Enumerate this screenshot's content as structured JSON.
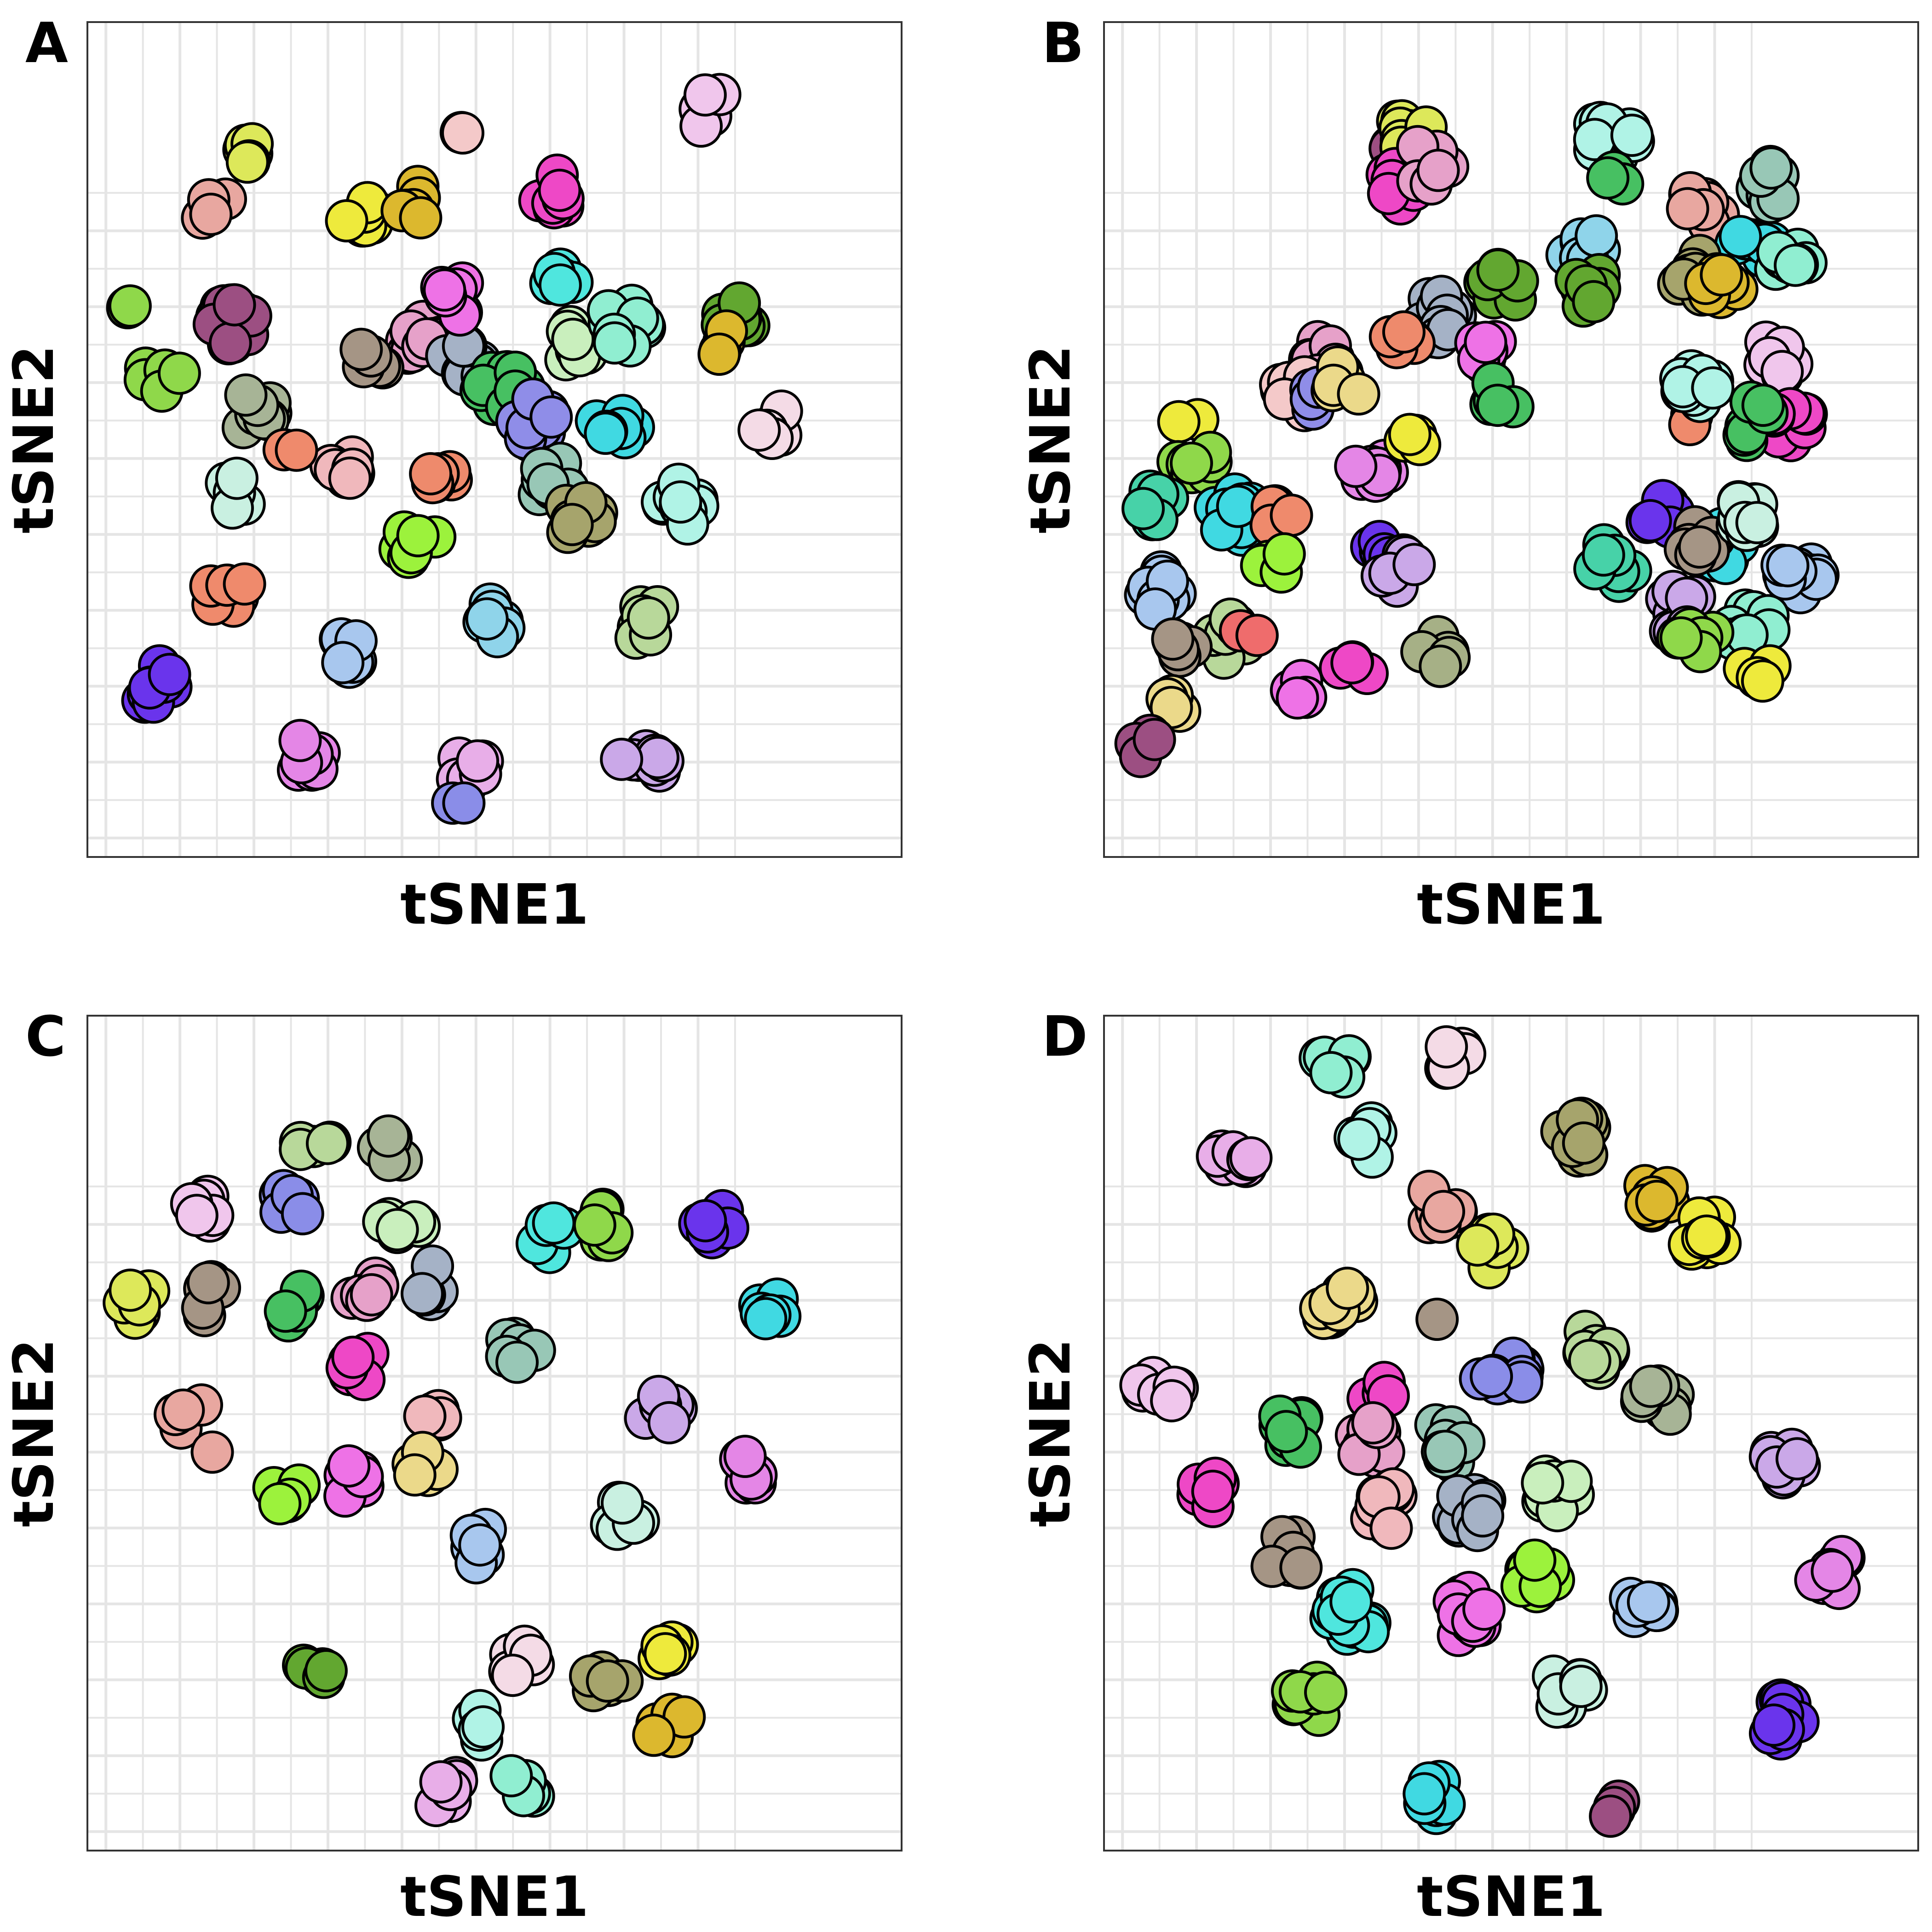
{
  "chart_data": [
    {
      "type": "scatter",
      "panel": "A",
      "xlabel": "tSNE1",
      "ylabel": "tSNE2",
      "grid": true,
      "legend": "none",
      "xlim": [
        0.0,
        8.8
      ],
      "ylim": [
        0.0,
        8.8
      ],
      "clusters": [
        {
          "color": "#dde85a",
          "x": 1.7,
          "y": 7.4,
          "n": 6
        },
        {
          "color": "#e8a7a0",
          "x": 1.4,
          "y": 6.8,
          "n": 5
        },
        {
          "color": "#f4c9c9",
          "x": 4.1,
          "y": 7.6,
          "n": 2
        },
        {
          "color": "#f0c6ec",
          "x": 6.7,
          "y": 7.9,
          "n": 8
        },
        {
          "color": "#ee48c6",
          "x": 5.0,
          "y": 7.0,
          "n": 8
        },
        {
          "color": "#eeea3c",
          "x": 3.0,
          "y": 6.7,
          "n": 8
        },
        {
          "color": "#dcb82e",
          "x": 3.5,
          "y": 6.9,
          "n": 6
        },
        {
          "color": "#8fd84a",
          "x": 0.4,
          "y": 5.8,
          "n": 2
        },
        {
          "color": "#8fd84a",
          "x": 0.8,
          "y": 5.1,
          "n": 6
        },
        {
          "color": "#9c4f82",
          "x": 1.6,
          "y": 5.6,
          "n": 14
        },
        {
          "color": "#a7b496",
          "x": 1.8,
          "y": 4.7,
          "n": 8
        },
        {
          "color": "#e6a1c9",
          "x": 3.6,
          "y": 5.5,
          "n": 12
        },
        {
          "color": "#a5b2c6",
          "x": 4.1,
          "y": 5.2,
          "n": 10
        },
        {
          "color": "#c9efbd",
          "x": 5.3,
          "y": 5.4,
          "n": 8
        },
        {
          "color": "#47c062",
          "x": 4.5,
          "y": 4.9,
          "n": 12
        },
        {
          "color": "#8f8de8",
          "x": 4.8,
          "y": 4.6,
          "n": 10
        },
        {
          "color": "#a59585",
          "x": 3.0,
          "y": 5.2,
          "n": 6
        },
        {
          "color": "#ee72e6",
          "x": 4.0,
          "y": 5.9,
          "n": 8
        },
        {
          "color": "#4fe6de",
          "x": 5.1,
          "y": 6.1,
          "n": 6
        },
        {
          "color": "#90eed1",
          "x": 5.8,
          "y": 5.6,
          "n": 10
        },
        {
          "color": "#62a730",
          "x": 7.0,
          "y": 5.7,
          "n": 8
        },
        {
          "color": "#dcb82e",
          "x": 6.9,
          "y": 5.4,
          "n": 4
        },
        {
          "color": "#f4dbe6",
          "x": 7.4,
          "y": 4.6,
          "n": 6
        },
        {
          "color": "#40d9e2",
          "x": 5.7,
          "y": 4.6,
          "n": 8
        },
        {
          "color": "#f0b8bc",
          "x": 2.8,
          "y": 4.1,
          "n": 8
        },
        {
          "color": "#ef8a6c",
          "x": 2.2,
          "y": 4.3,
          "n": 2
        },
        {
          "color": "#ee8a6c",
          "x": 3.8,
          "y": 4.1,
          "n": 6
        },
        {
          "color": "#98c7b6",
          "x": 5.0,
          "y": 4.0,
          "n": 10
        },
        {
          "color": "#a6a46c",
          "x": 5.3,
          "y": 3.6,
          "n": 8
        },
        {
          "color": "#c9f0e1",
          "x": 1.6,
          "y": 3.8,
          "n": 6
        },
        {
          "color": "#b0f3e6",
          "x": 6.4,
          "y": 3.7,
          "n": 10
        },
        {
          "color": "#9cf23c",
          "x": 3.6,
          "y": 3.3,
          "n": 10
        },
        {
          "color": "#ef8a6c",
          "x": 1.5,
          "y": 2.8,
          "n": 8
        },
        {
          "color": "#8fd4ea",
          "x": 4.4,
          "y": 2.5,
          "n": 8
        },
        {
          "color": "#a8c7ee",
          "x": 2.9,
          "y": 2.2,
          "n": 8
        },
        {
          "color": "#b8d89a",
          "x": 6.0,
          "y": 2.5,
          "n": 8
        },
        {
          "color": "#6a34ec",
          "x": 0.7,
          "y": 1.8,
          "n": 10
        },
        {
          "color": "#e486e6",
          "x": 2.3,
          "y": 1.0,
          "n": 10
        },
        {
          "color": "#e8aee8",
          "x": 4.1,
          "y": 0.9,
          "n": 8
        },
        {
          "color": "#8a8de8",
          "x": 4.0,
          "y": 0.6,
          "n": 2
        },
        {
          "color": "#caa8e8",
          "x": 6.0,
          "y": 1.0,
          "n": 10
        }
      ]
    },
    {
      "type": "scatter",
      "panel": "B",
      "xlabel": "tSNE1",
      "ylabel": "tSNE2",
      "grid": true,
      "legend": "none",
      "xlim": [
        0.0,
        8.8
      ],
      "ylim": [
        0.0,
        8.8
      ],
      "clusters": [
        {
          "color": "#9c4f82",
          "x": 3.3,
          "y": 7.4,
          "n": 10
        },
        {
          "color": "#dde85a",
          "x": 3.3,
          "y": 7.6,
          "n": 8
        },
        {
          "color": "#ee48c6",
          "x": 3.2,
          "y": 7.1,
          "n": 8
        },
        {
          "color": "#e6a1c9",
          "x": 3.5,
          "y": 7.3,
          "n": 8
        },
        {
          "color": "#b0f3e6",
          "x": 5.5,
          "y": 7.6,
          "n": 14
        },
        {
          "color": "#47c062",
          "x": 5.6,
          "y": 7.2,
          "n": 3
        },
        {
          "color": "#e8a7a0",
          "x": 6.5,
          "y": 6.9,
          "n": 10
        },
        {
          "color": "#98c7b6",
          "x": 7.2,
          "y": 7.1,
          "n": 8
        },
        {
          "color": "#40d9e2",
          "x": 7.0,
          "y": 6.5,
          "n": 8
        },
        {
          "color": "#8fd4ea",
          "x": 5.2,
          "y": 6.4,
          "n": 8
        },
        {
          "color": "#a6a46c",
          "x": 6.4,
          "y": 6.1,
          "n": 12
        },
        {
          "color": "#62a730",
          "x": 5.2,
          "y": 6.0,
          "n": 8
        },
        {
          "color": "#dcb82e",
          "x": 6.7,
          "y": 6.0,
          "n": 8
        },
        {
          "color": "#90eed1",
          "x": 7.4,
          "y": 6.3,
          "n": 8
        },
        {
          "color": "#a5b2c6",
          "x": 3.6,
          "y": 5.7,
          "n": 14
        },
        {
          "color": "#ee8a6c",
          "x": 3.2,
          "y": 5.4,
          "n": 6
        },
        {
          "color": "#62a730",
          "x": 4.3,
          "y": 6.0,
          "n": 8
        },
        {
          "color": "#ee72e6",
          "x": 4.2,
          "y": 5.3,
          "n": 8
        },
        {
          "color": "#47c062",
          "x": 4.3,
          "y": 4.9,
          "n": 6
        },
        {
          "color": "#e6a1c9",
          "x": 2.3,
          "y": 5.2,
          "n": 14
        },
        {
          "color": "#f4c9c9",
          "x": 2.1,
          "y": 4.9,
          "n": 8
        },
        {
          "color": "#8f8de8",
          "x": 2.3,
          "y": 4.8,
          "n": 4
        },
        {
          "color": "#ebd98a",
          "x": 2.6,
          "y": 5.0,
          "n": 6
        },
        {
          "color": "#f0c6ec",
          "x": 7.3,
          "y": 5.3,
          "n": 10
        },
        {
          "color": "#ee48c6",
          "x": 7.4,
          "y": 4.6,
          "n": 8
        },
        {
          "color": "#47c062",
          "x": 7.0,
          "y": 4.6,
          "n": 8
        },
        {
          "color": "#ef8a6c",
          "x": 6.3,
          "y": 4.6,
          "n": 2
        },
        {
          "color": "#b0f3e6",
          "x": 6.4,
          "y": 4.9,
          "n": 10
        },
        {
          "color": "#eeea3c",
          "x": 0.9,
          "y": 4.7,
          "n": 2
        },
        {
          "color": "#8fd84a",
          "x": 1.0,
          "y": 4.2,
          "n": 8
        },
        {
          "color": "#e486e6",
          "x": 2.9,
          "y": 4.1,
          "n": 10
        },
        {
          "color": "#eeea3c",
          "x": 3.3,
          "y": 4.4,
          "n": 4
        },
        {
          "color": "#40d9e2",
          "x": 1.4,
          "y": 3.6,
          "n": 10
        },
        {
          "color": "#ef8a6c",
          "x": 1.9,
          "y": 3.6,
          "n": 6
        },
        {
          "color": "#47d2a8",
          "x": 0.6,
          "y": 3.7,
          "n": 6
        },
        {
          "color": "#9cf23c",
          "x": 1.8,
          "y": 3.1,
          "n": 4
        },
        {
          "color": "#6a34ec",
          "x": 3.0,
          "y": 3.2,
          "n": 8
        },
        {
          "color": "#caa8e8",
          "x": 3.2,
          "y": 3.0,
          "n": 6
        },
        {
          "color": "#a8c7ee",
          "x": 0.6,
          "y": 2.8,
          "n": 10
        },
        {
          "color": "#b8d89a",
          "x": 1.4,
          "y": 2.3,
          "n": 10
        },
        {
          "color": "#a59585",
          "x": 0.9,
          "y": 2.2,
          "n": 6
        },
        {
          "color": "#ebd98a",
          "x": 0.8,
          "y": 1.7,
          "n": 4
        },
        {
          "color": "#ef6c6c",
          "x": 1.6,
          "y": 2.3,
          "n": 2
        },
        {
          "color": "#ee72e6",
          "x": 2.1,
          "y": 1.8,
          "n": 6
        },
        {
          "color": "#ee48c6",
          "x": 2.7,
          "y": 2.0,
          "n": 4
        },
        {
          "color": "#9c4f82",
          "x": 0.4,
          "y": 1.2,
          "n": 4
        },
        {
          "color": "#a6b086",
          "x": 3.6,
          "y": 2.2,
          "n": 6
        },
        {
          "color": "#6a34ec",
          "x": 6.0,
          "y": 3.6,
          "n": 6
        },
        {
          "color": "#40d9e2",
          "x": 6.7,
          "y": 3.3,
          "n": 12
        },
        {
          "color": "#a8c7ee",
          "x": 7.5,
          "y": 3.0,
          "n": 12
        },
        {
          "color": "#47d2a8",
          "x": 5.5,
          "y": 3.1,
          "n": 8
        },
        {
          "color": "#a59585",
          "x": 6.4,
          "y": 3.3,
          "n": 8
        },
        {
          "color": "#caa8e8",
          "x": 6.2,
          "y": 2.6,
          "n": 10
        },
        {
          "color": "#90eed1",
          "x": 7.0,
          "y": 2.4,
          "n": 10
        },
        {
          "color": "#8fd84a",
          "x": 6.4,
          "y": 2.3,
          "n": 6
        },
        {
          "color": "#eeea3c",
          "x": 7.1,
          "y": 2.0,
          "n": 4
        },
        {
          "color": "#c9f0e1",
          "x": 6.9,
          "y": 3.6,
          "n": 10
        }
      ]
    },
    {
      "type": "scatter",
      "panel": "C",
      "xlabel": "tSNE1",
      "ylabel": "tSNE2",
      "grid": true,
      "legend": "none",
      "xlim": [
        0.0,
        8.8
      ],
      "ylim": [
        0.0,
        8.8
      ],
      "clusters": [
        {
          "color": "#b8d89a",
          "x": 2.45,
          "y": 7.4,
          "n": 6
        },
        {
          "color": "#a7b496",
          "x": 3.3,
          "y": 7.4,
          "n": 6
        },
        {
          "color": "#f0c6ec",
          "x": 1.3,
          "y": 6.8,
          "n": 6
        },
        {
          "color": "#8a8de8",
          "x": 2.2,
          "y": 6.8,
          "n": 6
        },
        {
          "color": "#c9efbd",
          "x": 3.4,
          "y": 6.6,
          "n": 6
        },
        {
          "color": "#4fe6de",
          "x": 5.0,
          "y": 6.5,
          "n": 6
        },
        {
          "color": "#8fd84a",
          "x": 5.65,
          "y": 6.6,
          "n": 6
        },
        {
          "color": "#6a34ec",
          "x": 6.8,
          "y": 6.6,
          "n": 6
        },
        {
          "color": "#dde85a",
          "x": 0.5,
          "y": 5.8,
          "n": 6
        },
        {
          "color": "#a59585",
          "x": 1.3,
          "y": 5.8,
          "n": 6
        },
        {
          "color": "#47c062",
          "x": 2.3,
          "y": 5.7,
          "n": 6
        },
        {
          "color": "#e6a1c9",
          "x": 3.0,
          "y": 5.9,
          "n": 6
        },
        {
          "color": "#a5b2c6",
          "x": 3.7,
          "y": 6.0,
          "n": 6
        },
        {
          "color": "#40d9e2",
          "x": 7.3,
          "y": 5.7,
          "n": 6
        },
        {
          "color": "#98c7b6",
          "x": 4.7,
          "y": 5.3,
          "n": 6
        },
        {
          "color": "#ee48c6",
          "x": 2.9,
          "y": 5.1,
          "n": 6
        },
        {
          "color": "#e8a7a0",
          "x": 1.1,
          "y": 4.6,
          "n": 4
        },
        {
          "color": "#e8a7a0",
          "x": 1.35,
          "y": 4.2,
          "n": 1
        },
        {
          "color": "#f0b8bc",
          "x": 3.8,
          "y": 4.6,
          "n": 6
        },
        {
          "color": "#caa8e8",
          "x": 6.2,
          "y": 4.6,
          "n": 6
        },
        {
          "color": "#9cf23c",
          "x": 2.1,
          "y": 3.8,
          "n": 6
        },
        {
          "color": "#ee72e6",
          "x": 2.8,
          "y": 3.9,
          "n": 6
        },
        {
          "color": "#ebd98a",
          "x": 3.6,
          "y": 4.0,
          "n": 6
        },
        {
          "color": "#e486e6",
          "x": 7.1,
          "y": 4.0,
          "n": 6
        },
        {
          "color": "#c9f0e1",
          "x": 5.8,
          "y": 3.5,
          "n": 6
        },
        {
          "color": "#a8c7ee",
          "x": 4.3,
          "y": 3.2,
          "n": 6
        },
        {
          "color": "#62a730",
          "x": 2.5,
          "y": 1.9,
          "n": 6
        },
        {
          "color": "#f4dbe6",
          "x": 4.7,
          "y": 2.0,
          "n": 6
        },
        {
          "color": "#a6a46c",
          "x": 5.6,
          "y": 1.8,
          "n": 6
        },
        {
          "color": "#eeea3c",
          "x": 6.3,
          "y": 2.0,
          "n": 6
        },
        {
          "color": "#b0f3e6",
          "x": 4.3,
          "y": 1.3,
          "n": 6
        },
        {
          "color": "#dcb82e",
          "x": 6.3,
          "y": 1.3,
          "n": 6
        },
        {
          "color": "#e8aee8",
          "x": 3.9,
          "y": 0.6,
          "n": 6
        },
        {
          "color": "#90eed1",
          "x": 4.7,
          "y": 0.7,
          "n": 6
        }
      ]
    },
    {
      "type": "scatter",
      "panel": "D",
      "xlabel": "tSNE1",
      "ylabel": "tSNE2",
      "grid": true,
      "legend": "none",
      "xlim": [
        0.0,
        8.8
      ],
      "ylim": [
        0.0,
        8.8
      ],
      "clusters": [
        {
          "color": "#90eed1",
          "x": 2.5,
          "y": 8.3,
          "n": 6
        },
        {
          "color": "#f4dbe6",
          "x": 3.7,
          "y": 8.4,
          "n": 6
        },
        {
          "color": "#b0f3e6",
          "x": 2.8,
          "y": 7.5,
          "n": 8
        },
        {
          "color": "#e8aee8",
          "x": 1.4,
          "y": 7.2,
          "n": 8
        },
        {
          "color": "#a6a46c",
          "x": 5.1,
          "y": 7.5,
          "n": 10
        },
        {
          "color": "#dcb82e",
          "x": 5.9,
          "y": 6.9,
          "n": 10
        },
        {
          "color": "#eeea3c",
          "x": 6.5,
          "y": 6.5,
          "n": 10
        },
        {
          "color": "#e8a7a0",
          "x": 3.6,
          "y": 6.8,
          "n": 10
        },
        {
          "color": "#dde85a",
          "x": 4.2,
          "y": 6.3,
          "n": 8
        },
        {
          "color": "#ebd98a",
          "x": 2.5,
          "y": 5.8,
          "n": 10
        },
        {
          "color": "#a59585",
          "x": 3.6,
          "y": 5.6,
          "n": 1
        },
        {
          "color": "#8a8de8",
          "x": 4.3,
          "y": 5.0,
          "n": 12
        },
        {
          "color": "#b8d89a",
          "x": 5.3,
          "y": 5.3,
          "n": 10
        },
        {
          "color": "#a7b496",
          "x": 6.0,
          "y": 4.7,
          "n": 8
        },
        {
          "color": "#f0c6ec",
          "x": 0.6,
          "y": 4.9,
          "n": 8
        },
        {
          "color": "#47c062",
          "x": 2.0,
          "y": 4.4,
          "n": 8
        },
        {
          "color": "#ee48c6",
          "x": 3.0,
          "y": 4.8,
          "n": 4
        },
        {
          "color": "#e6a1c9",
          "x": 2.8,
          "y": 4.3,
          "n": 12
        },
        {
          "color": "#98c7b6",
          "x": 3.7,
          "y": 4.3,
          "n": 10
        },
        {
          "color": "#caa8e8",
          "x": 7.4,
          "y": 4.1,
          "n": 8
        },
        {
          "color": "#ee48c6",
          "x": 1.2,
          "y": 3.8,
          "n": 6
        },
        {
          "color": "#f0b8bc",
          "x": 3.1,
          "y": 3.6,
          "n": 10
        },
        {
          "color": "#a5b2c6",
          "x": 4.0,
          "y": 3.6,
          "n": 12
        },
        {
          "color": "#c9efbd",
          "x": 4.9,
          "y": 3.8,
          "n": 10
        },
        {
          "color": "#a59585",
          "x": 2.0,
          "y": 3.1,
          "n": 10
        },
        {
          "color": "#9cf23c",
          "x": 4.7,
          "y": 2.9,
          "n": 8
        },
        {
          "color": "#e486e6",
          "x": 7.9,
          "y": 2.9,
          "n": 8
        },
        {
          "color": "#4fe6de",
          "x": 2.7,
          "y": 2.5,
          "n": 14
        },
        {
          "color": "#ee72e6",
          "x": 3.9,
          "y": 2.5,
          "n": 12
        },
        {
          "color": "#a8c7ee",
          "x": 5.8,
          "y": 2.6,
          "n": 8
        },
        {
          "color": "#8fd84a",
          "x": 2.2,
          "y": 1.6,
          "n": 8
        },
        {
          "color": "#c9f0e1",
          "x": 5.0,
          "y": 1.7,
          "n": 8
        },
        {
          "color": "#6a34ec",
          "x": 7.3,
          "y": 1.4,
          "n": 12
        },
        {
          "color": "#40d9e2",
          "x": 3.6,
          "y": 0.6,
          "n": 8
        },
        {
          "color": "#9c4f82",
          "x": 5.4,
          "y": 0.5,
          "n": 4
        }
      ]
    }
  ]
}
